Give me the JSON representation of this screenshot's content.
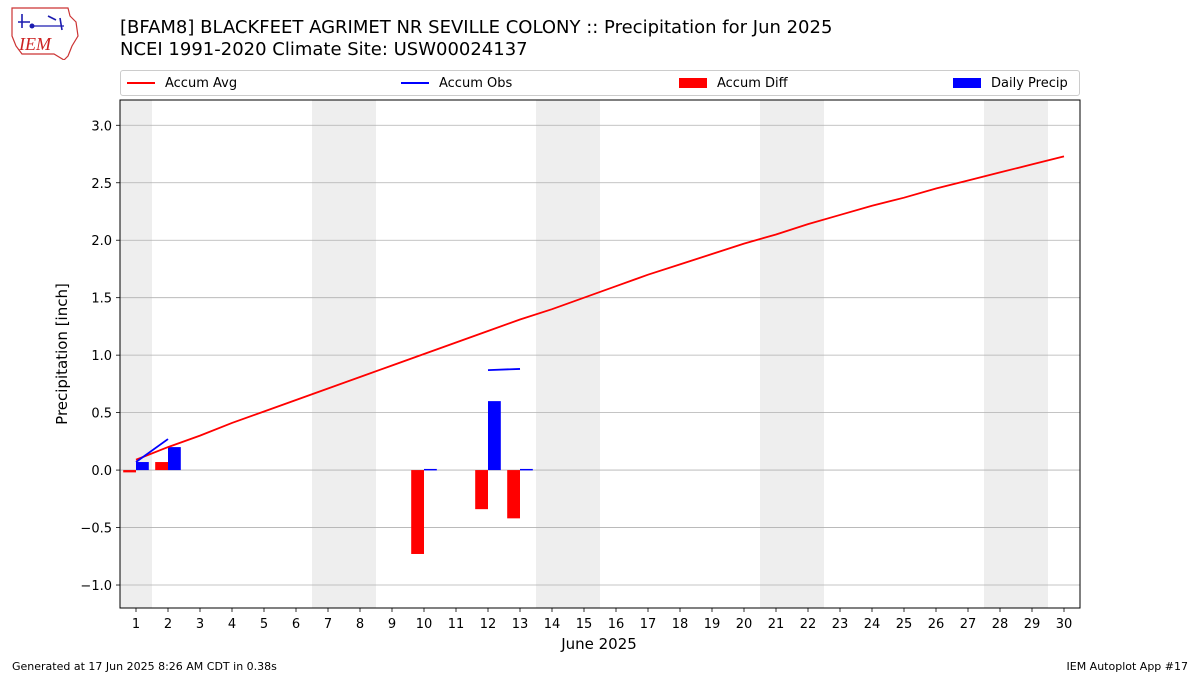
{
  "header": {
    "title": "[BFAM8] BLACKFEET AGRIMET NR SEVILLE COLONY :: Precipitation for Jun 2025",
    "subtitle": "NCEI 1991-2020 Climate Site: USW00024137",
    "logo_text": "IEM"
  },
  "footer": {
    "generated": "Generated at 17 Jun 2025 8:26 AM CDT in 0.38s",
    "app": "IEM Autoplot App #17"
  },
  "colors": {
    "accum_avg": "#ff0000",
    "accum_obs": "#0000ff",
    "accum_diff": "#ff0000",
    "daily_precip": "#0000ff",
    "weekend_band": "#eeeeee",
    "grid": "#b0b0b0"
  },
  "chart_data": {
    "type": "bar",
    "xlabel": "June 2025",
    "ylabel": "Precipitation [inch]",
    "xlim": [
      0.5,
      30.5
    ],
    "ylim": [
      -1.2,
      3.22
    ],
    "yticks": [
      -1.0,
      -0.5,
      0.0,
      0.5,
      1.0,
      1.5,
      2.0,
      2.5,
      3.0
    ],
    "ytick_labels": [
      "−1.0",
      "−0.5",
      "0.0",
      "0.5",
      "1.0",
      "1.5",
      "2.0",
      "2.5",
      "3.0"
    ],
    "xticks": [
      1,
      2,
      3,
      4,
      5,
      6,
      7,
      8,
      9,
      10,
      11,
      12,
      13,
      14,
      15,
      16,
      17,
      18,
      19,
      20,
      21,
      22,
      23,
      24,
      25,
      26,
      27,
      28,
      29,
      30
    ],
    "grid": "horizontal",
    "legend_position": "top",
    "weekend_days": [
      1,
      7,
      8,
      14,
      15,
      21,
      22,
      28,
      29
    ],
    "legend": [
      "Accum Avg",
      "Accum Obs",
      "Accum Diff",
      "Daily Precip"
    ],
    "series": [
      {
        "name": "Accum Avg",
        "kind": "line",
        "x": [
          1,
          2,
          3,
          4,
          5,
          6,
          7,
          8,
          9,
          10,
          11,
          12,
          13,
          14,
          15,
          16,
          17,
          18,
          19,
          20,
          21,
          22,
          23,
          24,
          25,
          26,
          27,
          28,
          29,
          30
        ],
        "values": [
          0.09,
          0.2,
          0.3,
          0.41,
          0.51,
          0.61,
          0.71,
          0.81,
          0.91,
          1.01,
          1.11,
          1.21,
          1.31,
          1.4,
          1.5,
          1.6,
          1.7,
          1.79,
          1.88,
          1.97,
          2.05,
          2.14,
          2.22,
          2.3,
          2.37,
          2.45,
          2.52,
          2.59,
          2.66,
          2.73
        ]
      },
      {
        "name": "Accum Obs",
        "kind": "line",
        "segments": [
          {
            "x": [
              1,
              2
            ],
            "values": [
              0.07,
              0.27
            ]
          },
          {
            "x": [
              12,
              13
            ],
            "values": [
              0.87,
              0.88
            ]
          }
        ]
      },
      {
        "name": "Accum Diff",
        "kind": "bar",
        "x": [
          1,
          2,
          10,
          12,
          13
        ],
        "values": [
          -0.02,
          0.07,
          -0.73,
          -0.34,
          -0.42
        ]
      },
      {
        "name": "Daily Precip",
        "kind": "bar",
        "x": [
          1,
          2,
          10,
          12,
          13
        ],
        "values": [
          0.07,
          0.2,
          0.01,
          0.6,
          0.01
        ]
      }
    ]
  }
}
